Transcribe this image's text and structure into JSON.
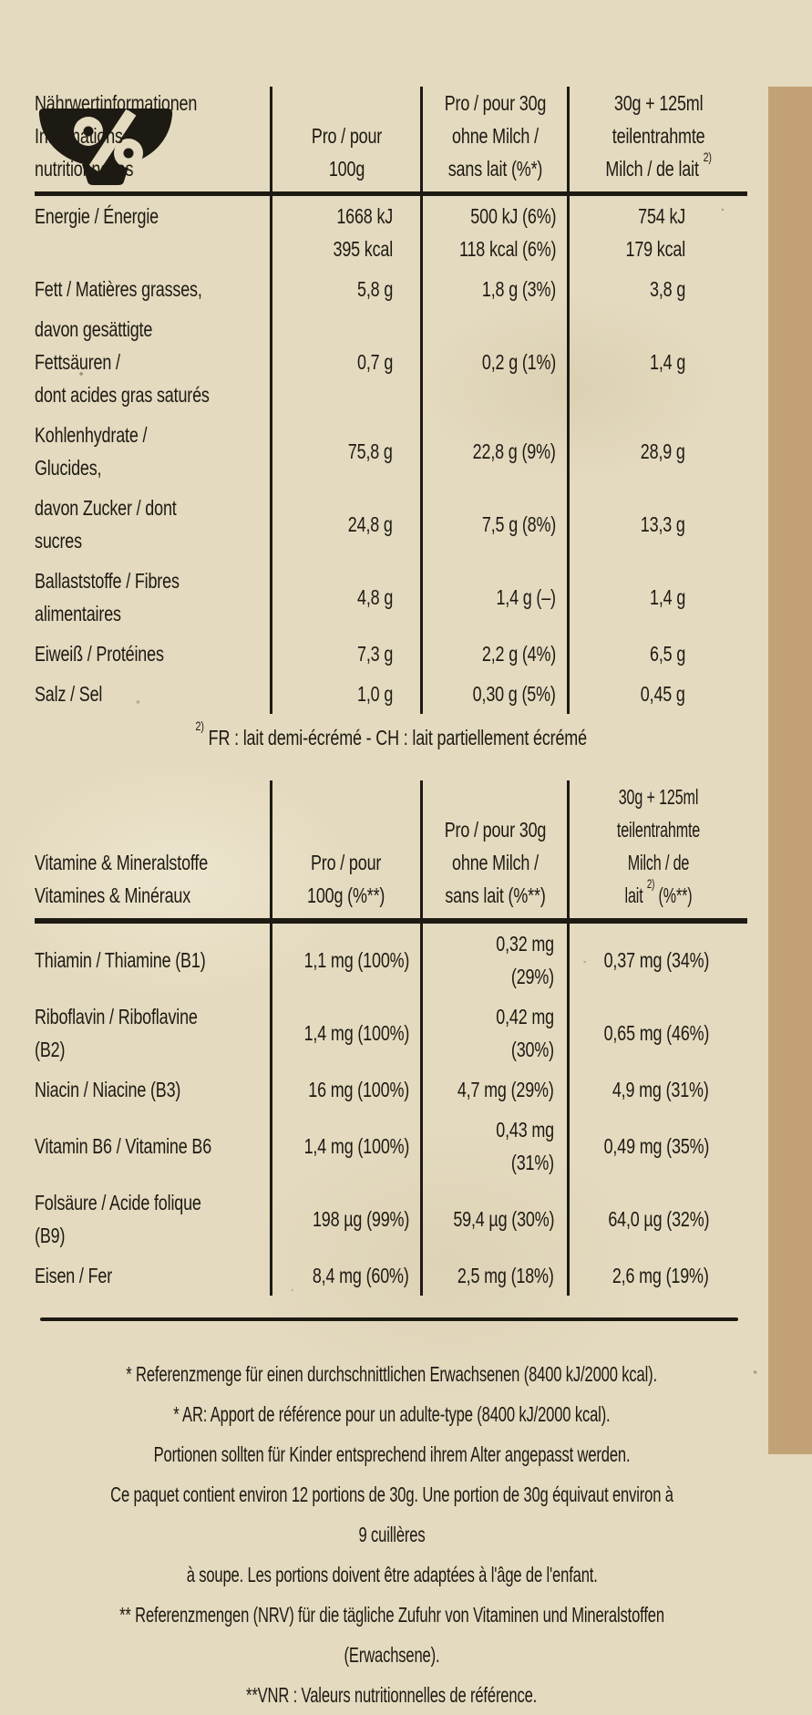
{
  "colors": {
    "paper": "#e4dabf",
    "ink": "#1d1a13",
    "strip": "#c2a274"
  },
  "icons": {
    "brand": "percent-bowl-icon"
  },
  "table1": {
    "header": {
      "col1": "Nährwertinformationen\nInformations nutritionnelles",
      "col2": "Pro / pour\n100g",
      "col3": "Pro / pour 30g\nohne Milch /\nsans lait (%*)",
      "col4_main": "30g + 125ml\nteilentrahmte\nMilch / de lait ",
      "col4_sup": "2)"
    },
    "rows": [
      {
        "label": "Energie / Énergie",
        "v100": "1668 kJ\n395 kcal",
        "v30": "500 kJ (6%)\n118 kcal (6%)",
        "vmilk": "754 kJ\n179 kcal"
      },
      {
        "label": "Fett / Matières grasses,",
        "v100": "5,8 g",
        "v30": "1,8 g (3%)",
        "vmilk": "3,8 g"
      },
      {
        "label": "davon gesättigte Fettsäuren /\ndont acides gras saturés",
        "v100": "0,7 g",
        "v30": "0,2 g (1%)",
        "vmilk": "1,4 g"
      },
      {
        "label": "Kohlenhydrate / Glucides,",
        "v100": "75,8 g",
        "v30": "22,8 g (9%)",
        "vmilk": "28,9 g"
      },
      {
        "label": "davon Zucker / dont sucres",
        "v100": "24,8 g",
        "v30": "7,5 g (8%)",
        "vmilk": "13,3 g"
      },
      {
        "label": "Ballaststoffe / Fibres\nalimentaires",
        "v100": "4,8 g",
        "v30": "1,4 g (–)",
        "vmilk": "1,4 g"
      },
      {
        "label": "Eiweiß / Protéines",
        "v100": "7,3 g",
        "v30": "2,2 g (4%)",
        "vmilk": "6,5 g"
      },
      {
        "label": "Salz / Sel",
        "v100": "1,0 g",
        "v30": "0,30 g (5%)",
        "vmilk": "0,45 g"
      }
    ]
  },
  "milk_footnote": {
    "sup": "2)",
    "text": " FR : lait demi-écrémé - CH : lait partiellement écrémé"
  },
  "table2": {
    "header": {
      "col1": "Vitamine & Mineralstoffe\nVitamines & Minéraux",
      "col2": "Pro / pour\n100g (%**)",
      "col3": "Pro / pour 30g\nohne Milch /\nsans lait (%**)",
      "col4_main": "30g + 125ml\nteilentrahmte\nMilch / de lait ",
      "col4_sup": "2)",
      "col4_tail": " (%**)"
    },
    "rows": [
      {
        "label": "Thiamin / Thiamine (B1)",
        "v100": "1,1 mg (100%)",
        "v30": "0,32 mg (29%)",
        "vmilk": "0,37 mg (34%)"
      },
      {
        "label": "Riboflavin / Riboflavine (B2)",
        "v100": "1,4 mg (100%)",
        "v30": "0,42 mg (30%)",
        "vmilk": "0,65 mg (46%)"
      },
      {
        "label": "Niacin / Niacine (B3)",
        "v100": "16 mg (100%)",
        "v30": "4,7 mg (29%)",
        "vmilk": "4,9 mg (31%)"
      },
      {
        "label": "Vitamin B6 / Vitamine B6",
        "v100": "1,4 mg (100%)",
        "v30": "0,43 mg (31%)",
        "vmilk": "0,49 mg (35%)"
      },
      {
        "label": "Folsäure / Acide folique (B9)",
        "v100": "198 µg (99%)",
        "v30": "59,4 µg (30%)",
        "vmilk": "64,0 µg (32%)"
      },
      {
        "label": "Eisen / Fer",
        "v100": "8,4 mg (60%)",
        "v30": "2,5 mg (18%)",
        "vmilk": "2,6 mg (19%)"
      }
    ]
  },
  "footnotes": {
    "lines": [
      "* Referenzmenge für einen durchschnittlichen Erwachsenen (8400 kJ/2000 kcal).",
      "* AR: Apport de référence pour un adulte-type (8400 kJ/2000 kcal).",
      "Portionen sollten für Kinder entsprechend ihrem Alter angepasst werden.",
      "Ce paquet contient environ 12 portions de 30g. Une portion de 30g équivaut environ à 9 cuillères",
      "à soupe. Les portions doivent être adaptées à l'âge de l'enfant.",
      "** Referenzmengen (NRV) für die tägliche Zufuhr von Vitaminen und Mineralstoffen (Erwachsene).",
      "**VNR : Valeurs nutritionnelles de référence."
    ]
  }
}
